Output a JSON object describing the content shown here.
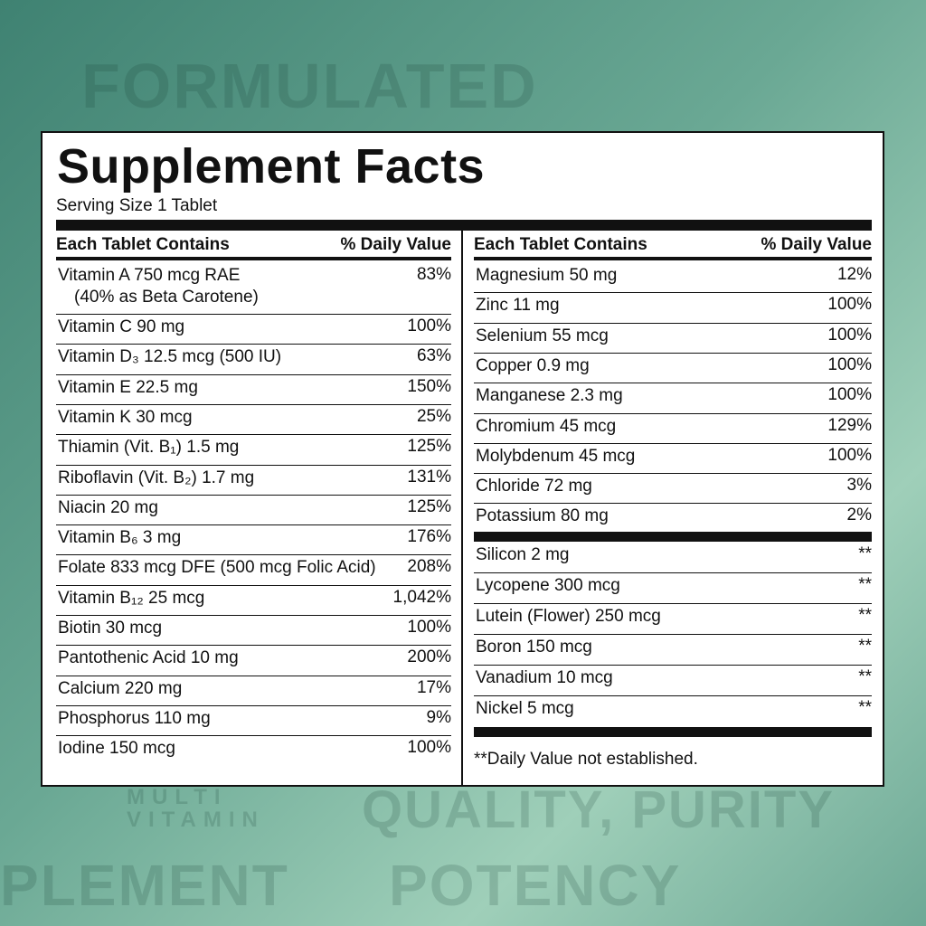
{
  "background_words": [
    "FORMULATED",
    "MULTI",
    "VITAMIN",
    "QUALITY, PURITY",
    "PLEMENT",
    "POTENCY"
  ],
  "title": "Supplement Facts",
  "serving_size": "Serving Size 1 Tablet",
  "columns": [
    {
      "header": [
        "Each Tablet Contains",
        "% Daily Value"
      ],
      "rows": [
        {
          "name": "Vitamin A 750 mcg RAE",
          "note": "(40% as Beta Carotene)",
          "dv": "83%"
        },
        {
          "name": "Vitamin C 90 mg",
          "dv": "100%"
        },
        {
          "name": "Vitamin D₃ 12.5 mcg (500 IU)",
          "dv": "63%"
        },
        {
          "name": "Vitamin E 22.5 mg",
          "dv": "150%"
        },
        {
          "name": "Vitamin K 30 mcg",
          "dv": "25%"
        },
        {
          "name": "Thiamin (Vit. B₁) 1.5 mg",
          "dv": "125%"
        },
        {
          "name": "Riboflavin (Vit. B₂) 1.7 mg",
          "dv": "131%"
        },
        {
          "name": "Niacin 20 mg",
          "dv": "125%"
        },
        {
          "name": "Vitamin B₆ 3 mg",
          "dv": "176%"
        },
        {
          "name": "Folate 833 mcg DFE (500 mcg Folic Acid)",
          "dv": "208%"
        },
        {
          "name": "Vitamin B₁₂ 25 mcg",
          "dv": "1,042%"
        },
        {
          "name": "Biotin 30 mcg",
          "dv": "100%"
        },
        {
          "name": "Pantothenic Acid 10 mg",
          "dv": "200%"
        },
        {
          "name": "Calcium 220 mg",
          "dv": "17%"
        },
        {
          "name": "Phosphorus 110 mg",
          "dv": "9%"
        },
        {
          "name": "Iodine 150 mcg",
          "dv": "100%"
        }
      ]
    },
    {
      "header": [
        "Each Tablet Contains",
        "% Daily Value"
      ],
      "rows": [
        {
          "name": "Magnesium 50 mg",
          "dv": "12%"
        },
        {
          "name": "Zinc 11 mg",
          "dv": "100%"
        },
        {
          "name": "Selenium 55 mcg",
          "dv": "100%"
        },
        {
          "name": "Copper 0.9 mg",
          "dv": "100%"
        },
        {
          "name": "Manganese 2.3 mg",
          "dv": "100%"
        },
        {
          "name": "Chromium 45 mcg",
          "dv": "129%"
        },
        {
          "name": "Molybdenum  45 mcg",
          "dv": "100%"
        },
        {
          "name": "Chloride  72 mg",
          "dv": "3%"
        },
        {
          "name": "Potassium  80 mg",
          "dv": "2%"
        }
      ],
      "other_rows": [
        {
          "name": "Silicon  2 mg",
          "dv": "**"
        },
        {
          "name": "Lycopene  300 mcg",
          "dv": "**"
        },
        {
          "name": "Lutein (Flower)  250 mcg",
          "dv": "**"
        },
        {
          "name": "Boron  150 mcg",
          "dv": "**"
        },
        {
          "name": "Vanadium  10 mcg",
          "dv": "**"
        },
        {
          "name": "Nickel  5 mcg",
          "dv": "**"
        }
      ],
      "footnote": "**Daily Value not established."
    }
  ]
}
